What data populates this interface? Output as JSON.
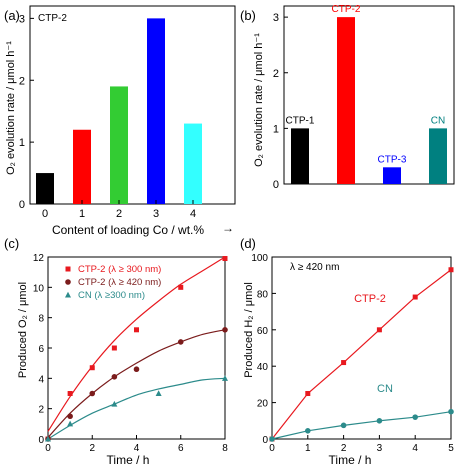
{
  "chart_data": [
    {
      "panel": "(a)",
      "type": "bar",
      "title": "CTP-2",
      "ylabel": "O₂ evolution rate / μmol h⁻¹",
      "xlabel": "Content of loading Co / wt.%",
      "categories": [
        "0",
        "1",
        "2",
        "3",
        "4"
      ],
      "values": [
        0.5,
        1.2,
        1.9,
        3.0,
        1.3
      ],
      "colors": [
        "#000000",
        "#ff0000",
        "#33cc33",
        "#0000ff",
        "#33ffff"
      ],
      "ylim": [
        0,
        3.2
      ],
      "yticks": [
        0,
        1,
        2,
        3
      ]
    },
    {
      "panel": "(b)",
      "type": "bar",
      "ylabel": "O₂ evolution rate / μmol h⁻¹",
      "categories": [
        "CTP-1",
        "CTP-2",
        "CTP-3",
        "CN"
      ],
      "values": [
        1.0,
        3.0,
        0.3,
        1.0
      ],
      "colors": [
        "#000000",
        "#ff0000",
        "#0000ff",
        "#008080"
      ],
      "label_colors": [
        "#000000",
        "#ff0000",
        "#0000ff",
        "#008080"
      ],
      "ylim": [
        0,
        3.2
      ],
      "yticks": [
        0,
        1,
        2,
        3
      ]
    },
    {
      "panel": "(c)",
      "type": "scatter",
      "xlabel": "Time / h",
      "ylabel": "Produced O₂ / μmol",
      "xlim": [
        0,
        8
      ],
      "ylim": [
        0,
        12
      ],
      "xticks": [
        0,
        2,
        4,
        6,
        8
      ],
      "yticks": [
        0,
        2,
        4,
        6,
        8,
        10,
        12
      ],
      "legend": "top-left",
      "series": [
        {
          "name": "CTP-2 (λ ≥ 300 nm)",
          "color": "#e8191f",
          "marker": "square",
          "x": [
            0,
            1,
            2,
            3,
            4,
            6,
            8
          ],
          "y": [
            0,
            3.0,
            4.7,
            6.0,
            7.2,
            10.0,
            11.9
          ],
          "fit_x": [
            0,
            1,
            2,
            3,
            4,
            5,
            6,
            7,
            8
          ],
          "fit_y": [
            0.5,
            2.8,
            4.8,
            6.5,
            7.9,
            9.1,
            10.2,
            11.1,
            12.0
          ]
        },
        {
          "name": "CTP-2 (λ ≥ 420 nm)",
          "color": "#7b1c1c",
          "marker": "circle",
          "x": [
            0,
            1,
            2,
            3,
            4,
            6,
            8
          ],
          "y": [
            0,
            1.5,
            3.0,
            4.1,
            4.6,
            6.4,
            7.2
          ],
          "fit_x": [
            0,
            1,
            2,
            3,
            4,
            5,
            6,
            7,
            8
          ],
          "fit_y": [
            0.1,
            1.7,
            3.0,
            4.1,
            5.0,
            5.8,
            6.4,
            6.9,
            7.2
          ]
        },
        {
          "name": "CN (λ ≥300 nm)",
          "color": "#2c8b8b",
          "marker": "triangle",
          "x": [
            0,
            1,
            3,
            5,
            8
          ],
          "y": [
            0,
            1.0,
            2.3,
            3.0,
            4.0
          ],
          "fit_x": [
            0,
            1,
            2,
            3,
            4,
            5,
            6,
            7,
            8
          ],
          "fit_y": [
            0,
            0.9,
            1.7,
            2.3,
            2.9,
            3.3,
            3.6,
            3.9,
            4.0
          ]
        }
      ]
    },
    {
      "panel": "(d)",
      "type": "line",
      "annotation": "λ ≥ 420 nm",
      "xlabel": "Time / h",
      "ylabel": "Produced H₂ / μmol",
      "xlim": [
        0,
        5
      ],
      "ylim": [
        0,
        100
      ],
      "xticks": [
        0,
        1,
        2,
        3,
        4,
        5
      ],
      "yticks": [
        0,
        20,
        40,
        60,
        80,
        100
      ],
      "series": [
        {
          "name": "CTP-2",
          "color": "#e8191f",
          "marker": "square",
          "x": [
            0,
            1,
            2,
            3,
            4,
            5
          ],
          "y": [
            0,
            25,
            42,
            60,
            78,
            93
          ]
        },
        {
          "name": "CN",
          "color": "#2c8b8b",
          "marker": "circle",
          "x": [
            0,
            1,
            2,
            3,
            4,
            5
          ],
          "y": [
            0,
            4.5,
            7.5,
            10,
            12,
            15
          ]
        }
      ]
    }
  ]
}
